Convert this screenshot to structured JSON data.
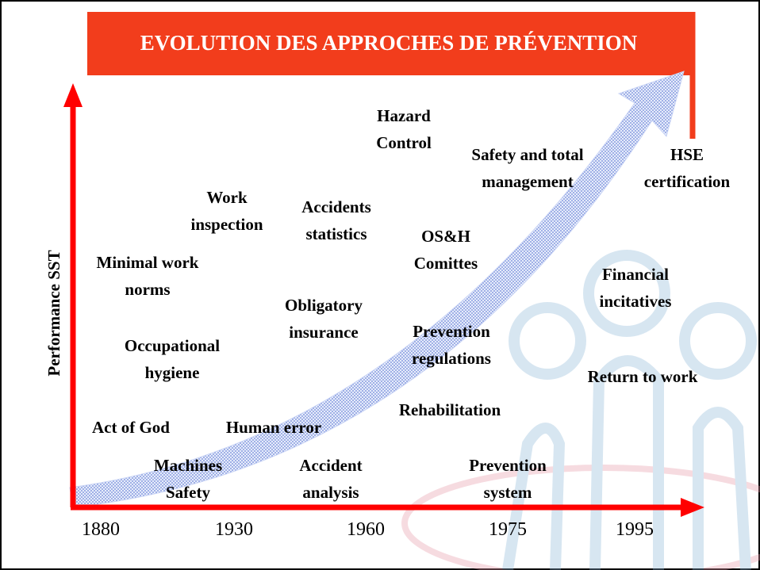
{
  "title": "EVOLUTION DES APPROCHES DE PRÉVENTION",
  "y_axis_label": "Performance SST",
  "x_labels": [
    "1880",
    "1930",
    "1960",
    "1975",
    "1995"
  ],
  "items": [
    {
      "lines": [
        "Hazard",
        "Control"
      ]
    },
    {
      "lines": [
        "Safety and total",
        "management"
      ]
    },
    {
      "lines": [
        "HSE",
        "certification"
      ]
    },
    {
      "lines": [
        "Work",
        "inspection"
      ]
    },
    {
      "lines": [
        "Accidents",
        "statistics"
      ]
    },
    {
      "lines": [
        "OS&H",
        "Comittes"
      ]
    },
    {
      "lines": [
        "Minimal work",
        "norms"
      ]
    },
    {
      "lines": [
        "Financial",
        "incitatives"
      ]
    },
    {
      "lines": [
        "Obligatory",
        "insurance"
      ]
    },
    {
      "lines": [
        "Prevention",
        "regulations"
      ]
    },
    {
      "lines": [
        "Occupational",
        "hygiene"
      ]
    },
    {
      "lines": [
        "Return to work"
      ]
    },
    {
      "lines": [
        "Rehabilitation"
      ]
    },
    {
      "lines": [
        "Act of God"
      ]
    },
    {
      "lines": [
        "Human error"
      ]
    },
    {
      "lines": [
        "Machines",
        "Safety"
      ]
    },
    {
      "lines": [
        "Accident",
        "analysis"
      ]
    },
    {
      "lines": [
        "Prevention",
        "system"
      ]
    }
  ]
}
